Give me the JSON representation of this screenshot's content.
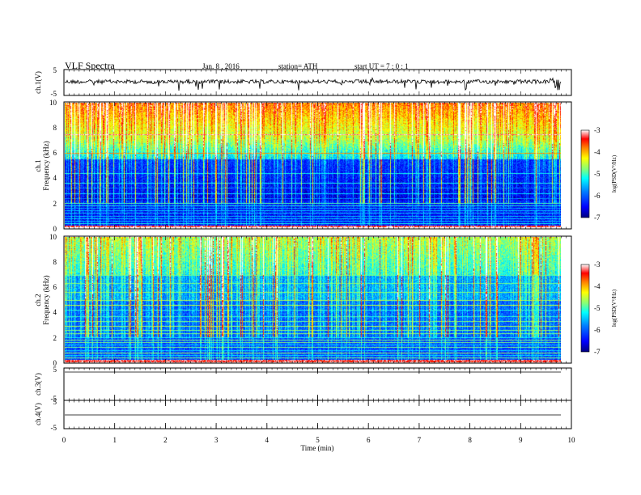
{
  "header": {
    "title": "VLF Spectra",
    "date": "Jan. 8 , 2016",
    "station": "station= ATH",
    "start": "start UT = 7 : 0 : 1"
  },
  "chart_data": [
    {
      "type": "line",
      "panel": "ch1-waveform",
      "ylabel": "ch.1(V)",
      "ylim": [
        -5,
        5
      ],
      "yticks": [
        "5",
        "-5"
      ],
      "xlim": [
        0,
        10
      ],
      "description_values": {
        "baseline_V": 0.0,
        "noise_amplitude_V": 1.0,
        "data_end_min": 9.82
      }
    },
    {
      "type": "heatmap",
      "panel": "ch1-spectrogram",
      "ylabel": [
        "ch.1",
        "Frequency (kHz)"
      ],
      "ylim": [
        0,
        10
      ],
      "yticks": [
        "0",
        "2",
        "4",
        "6",
        "8",
        "10"
      ],
      "xlim": [
        0,
        10
      ],
      "colorbar": {
        "label": "log(PSD(V²/Hz)",
        "range": [
          -7,
          -3
        ],
        "ticks": [
          "-3",
          "-4",
          "-5",
          "-6",
          "-7"
        ]
      }
    },
    {
      "type": "heatmap",
      "panel": "ch2-spectrogram",
      "ylabel": [
        "ch.2",
        "Frequency (kHz)"
      ],
      "ylim": [
        0,
        10
      ],
      "yticks": [
        "0",
        "2",
        "4",
        "6",
        "8",
        "10"
      ],
      "xlim": [
        0,
        10
      ],
      "colorbar": {
        "label": "log(PSD(V²/Hz)",
        "range": [
          -7,
          -3
        ],
        "ticks": [
          "-3",
          "-4",
          "-5",
          "-6",
          "-7"
        ]
      }
    },
    {
      "type": "line",
      "panel": "ch3-waveform",
      "ylabel": "ch.3(V)",
      "ylim": [
        -5,
        5
      ],
      "yticks": [
        "5",
        "-5"
      ],
      "xlim": [
        0,
        10
      ]
    },
    {
      "type": "line",
      "panel": "ch4-waveform",
      "ylabel": "ch.4(V)",
      "ylim": [
        -5,
        5
      ],
      "yticks": [
        "5",
        "-5"
      ],
      "xlim": [
        0,
        10
      ]
    }
  ],
  "xaxis": {
    "label": "Time (min)",
    "ticks": [
      "0",
      "1",
      "2",
      "3",
      "4",
      "5",
      "6",
      "7",
      "8",
      "9",
      "10"
    ],
    "range": [
      0,
      10
    ]
  },
  "colors": {
    "jet": [
      "#00007f",
      "#0000ff",
      "#007fff",
      "#00ffff",
      "#7fff7f",
      "#ffff00",
      "#ff7f00",
      "#ff0000",
      "#ffb0b0",
      "#ffffff"
    ]
  }
}
